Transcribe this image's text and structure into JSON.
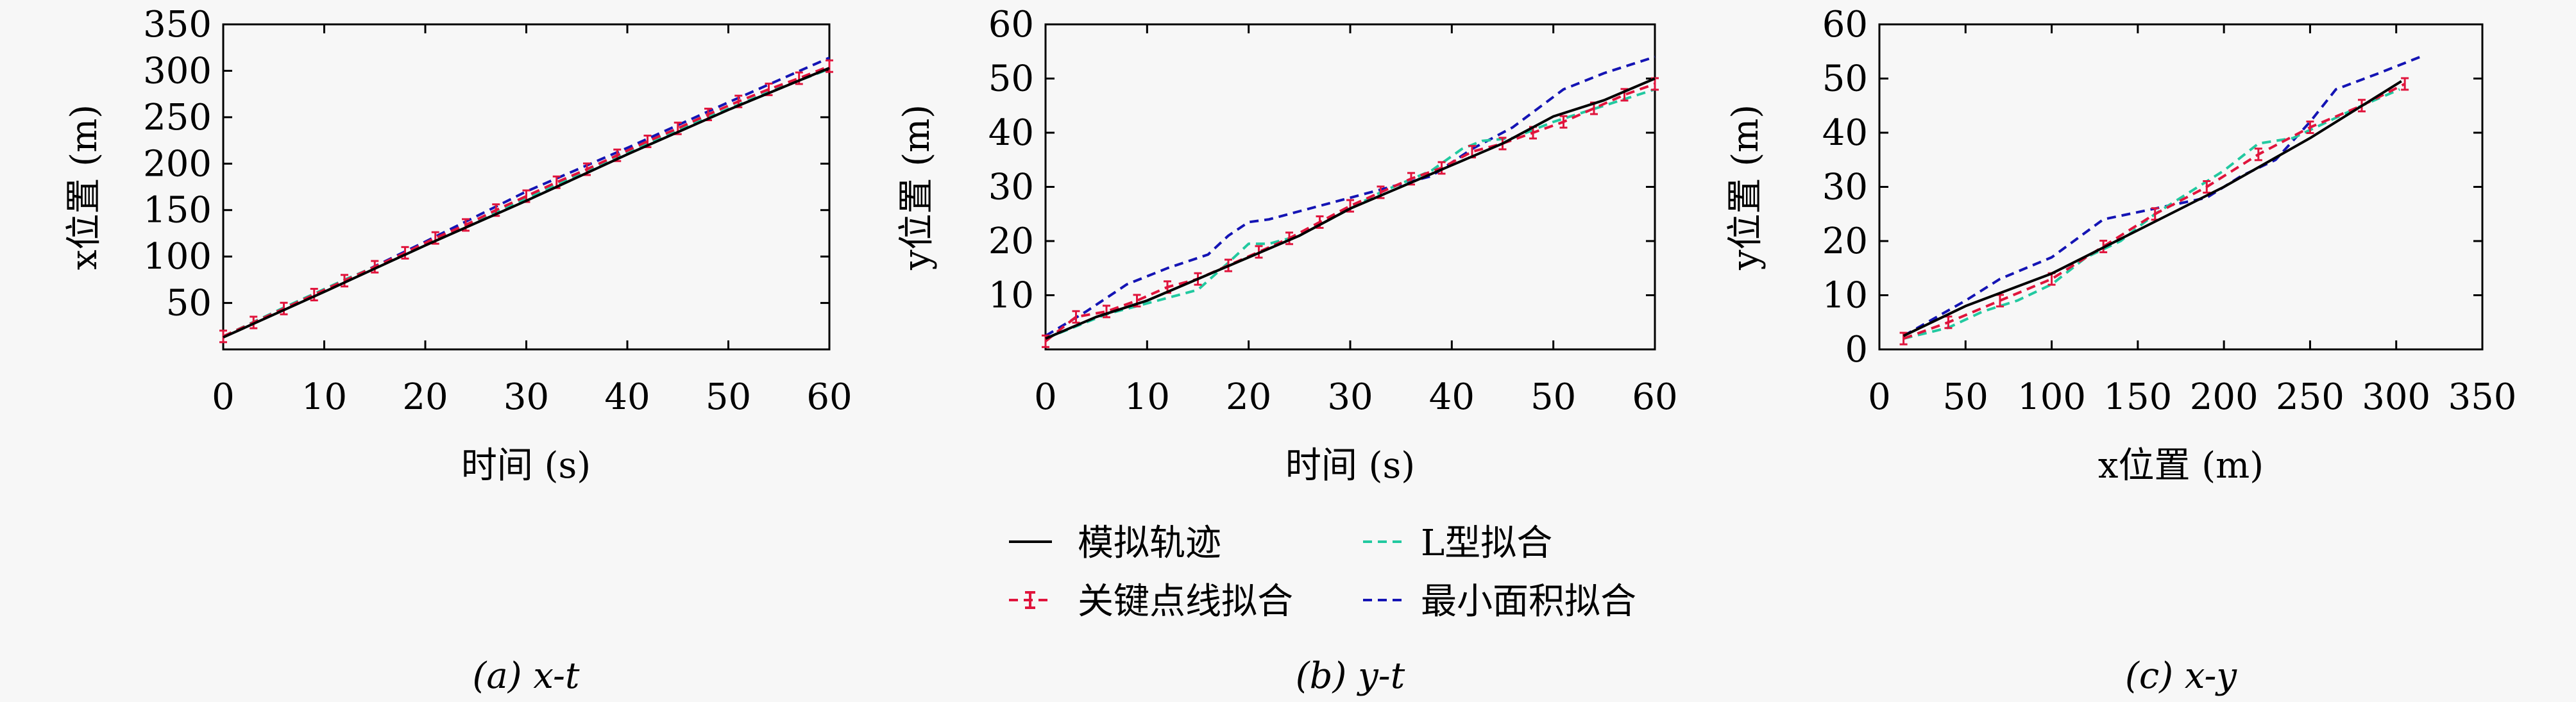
{
  "legend": {
    "items": [
      {
        "label": "模拟轨迹",
        "series": "sim"
      },
      {
        "label": "L型拟合",
        "series": "lshape"
      },
      {
        "label": "关键点线拟合",
        "series": "keypoint"
      },
      {
        "label": "最小面积拟合",
        "series": "minarea"
      }
    ]
  },
  "colors": {
    "sim": "#000000",
    "lshape": "#22c9a0",
    "keypoint": "#e0143c",
    "minarea": "#1414b4",
    "axis": "#000000",
    "background": "#f7f7f7"
  },
  "chart_data": [
    {
      "type": "line",
      "caption": "(a) x-t",
      "xlabel": "时间 (s)",
      "ylabel": "x位置 (m)",
      "xlim": [
        0,
        60
      ],
      "ylim": [
        0,
        350
      ],
      "xticks": [
        0,
        10,
        20,
        30,
        40,
        50,
        60
      ],
      "yticks": [
        50,
        100,
        150,
        200,
        250,
        300,
        350
      ],
      "grid": false,
      "series": [
        {
          "key": "sim",
          "x": [
            0,
            10,
            20,
            30,
            40,
            50,
            60
          ],
          "y": [
            13,
            62,
            112,
            160,
            210,
            258,
            303
          ]
        },
        {
          "key": "lshape",
          "x": [
            0,
            6,
            12,
            18,
            24,
            30,
            36,
            42,
            48,
            54,
            60
          ],
          "y": [
            14,
            45,
            75,
            103,
            133,
            163,
            193,
            222,
            250,
            277,
            302
          ]
        },
        {
          "key": "keypoint",
          "x": [
            0,
            3,
            6,
            9,
            12,
            15,
            18,
            21,
            24,
            27,
            30,
            33,
            36,
            39,
            42,
            45,
            48,
            51,
            54,
            57,
            60
          ],
          "y": [
            14,
            29,
            44,
            59,
            74,
            89,
            104,
            120,
            134,
            150,
            165,
            180,
            194,
            209,
            224,
            238,
            253,
            267,
            280,
            292,
            305
          ]
        },
        {
          "key": "minarea",
          "x": [
            0,
            10,
            20,
            30,
            40,
            50,
            60
          ],
          "y": [
            14,
            63,
            116,
            170,
            217,
            266,
            314
          ]
        }
      ]
    },
    {
      "type": "line",
      "caption": "(b) y-t",
      "xlabel": "时间 (s)",
      "ylabel": "y位置 (m)",
      "xlim": [
        0,
        60
      ],
      "ylim": [
        0,
        60
      ],
      "xticks": [
        0,
        10,
        20,
        30,
        40,
        50,
        60
      ],
      "yticks": [
        10,
        20,
        30,
        40,
        50,
        60
      ],
      "grid": false,
      "series": [
        {
          "key": "sim",
          "x": [
            0,
            5,
            10,
            15,
            20,
            25,
            30,
            35,
            40,
            45,
            50,
            55,
            60
          ],
          "y": [
            2,
            6,
            9,
            13,
            17,
            21,
            26,
            30,
            34,
            38,
            43,
            46,
            50
          ]
        },
        {
          "key": "lshape",
          "x": [
            0,
            6,
            10,
            15,
            18,
            20,
            22,
            25,
            29,
            33,
            38,
            41,
            43,
            46,
            50,
            55,
            60
          ],
          "y": [
            2,
            6.5,
            8.5,
            11,
            16,
            19.5,
            19.5,
            21,
            25,
            29,
            33,
            37,
            38.5,
            39,
            42,
            45,
            48
          ]
        },
        {
          "key": "keypoint",
          "x": [
            0,
            3,
            6,
            9,
            12,
            15,
            18,
            21,
            24,
            27,
            30,
            33,
            36,
            39,
            42,
            45,
            48,
            51,
            54,
            57,
            60
          ],
          "y": [
            1.5,
            6,
            7,
            9,
            11.5,
            13,
            15.5,
            18,
            20.5,
            23.5,
            26.5,
            29,
            31.5,
            33.5,
            36.5,
            38,
            40,
            42,
            44.5,
            47,
            49
          ]
        },
        {
          "key": "minarea",
          "x": [
            0,
            4,
            8,
            12,
            16,
            18,
            20,
            22,
            26,
            30,
            34,
            38,
            42,
            46,
            51,
            55,
            60
          ],
          "y": [
            2.5,
            7,
            12,
            15,
            17.5,
            21,
            23.5,
            24,
            26,
            28,
            30,
            32,
            37,
            41,
            48,
            51,
            54
          ]
        }
      ]
    },
    {
      "type": "line",
      "caption": "(c) x-y",
      "xlabel": "x位置 (m)",
      "ylabel": "y位置 (m)",
      "xlim": [
        0,
        350
      ],
      "ylim": [
        0,
        60
      ],
      "xticks": [
        0,
        50,
        100,
        150,
        200,
        250,
        300,
        350
      ],
      "yticks": [
        0,
        10,
        20,
        30,
        40,
        50,
        60
      ],
      "grid": false,
      "series": [
        {
          "key": "sim",
          "x": [
            14,
            50,
            100,
            150,
            200,
            250,
            303
          ],
          "y": [
            2.5,
            8,
            14,
            22,
            30,
            39,
            49.5
          ]
        },
        {
          "key": "lshape",
          "x": [
            14,
            40,
            60,
            80,
            100,
            120,
            140,
            160,
            180,
            200,
            220,
            240,
            260,
            280,
            302
          ],
          "y": [
            2,
            4,
            7,
            9,
            12,
            17,
            20,
            25,
            29,
            33,
            38,
            39,
            42,
            45,
            48
          ]
        },
        {
          "key": "keypoint",
          "x": [
            14,
            40,
            70,
            100,
            130,
            160,
            190,
            220,
            250,
            280,
            305
          ],
          "y": [
            2,
            5,
            9,
            13,
            19,
            25,
            30,
            36,
            41,
            45,
            49
          ]
        },
        {
          "key": "minarea",
          "x": [
            14,
            50,
            70,
            100,
            130,
            160,
            190,
            210,
            230,
            250,
            265,
            290,
            314
          ],
          "y": [
            2.5,
            9,
            13,
            17,
            24,
            26,
            28,
            32,
            35,
            42,
            48,
            51,
            54
          ]
        }
      ]
    }
  ]
}
